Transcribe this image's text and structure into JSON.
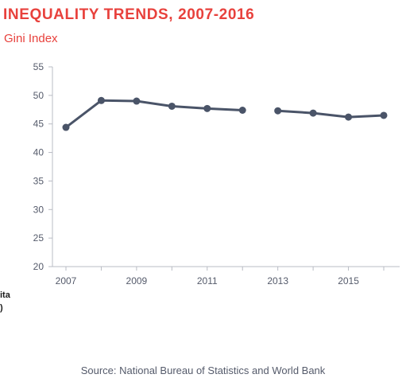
{
  "title": "INEQUALITY TRENDS, 2007-2016",
  "subtitle": "Gini Index",
  "source": "Source: National Bureau of Statistics and World Bank",
  "clipped_left_text": [
    "ita",
    ")"
  ],
  "colors": {
    "accent": "#e8413c",
    "series": "#4a5468",
    "axis": "#b9bcc4",
    "text": "#555b6b"
  },
  "chart_data": {
    "type": "line",
    "title": "INEQUALITY TRENDS, 2007-2016",
    "subtitle": "Gini Index",
    "xlabel": "",
    "ylabel": "",
    "x": [
      2007,
      2008,
      2009,
      2010,
      2011,
      2012,
      2013,
      2014,
      2015,
      2016
    ],
    "series": [
      {
        "values": [
          44.4,
          49.1,
          49.0,
          48.1,
          47.7,
          47.4,
          47.3,
          46.9,
          46.2,
          46.5
        ],
        "segments": [
          [
            2007,
            2012
          ],
          [
            2013,
            2016
          ]
        ]
      }
    ],
    "xlim": [
      2007,
      2016
    ],
    "ylim": [
      20,
      55
    ],
    "yticks": [
      20,
      25,
      30,
      35,
      40,
      45,
      50,
      55
    ],
    "xticks": [
      2007,
      2009,
      2011,
      2013,
      2015
    ],
    "grid": false,
    "markers": true,
    "source": "Source: National Bureau of Statistics and World Bank"
  }
}
